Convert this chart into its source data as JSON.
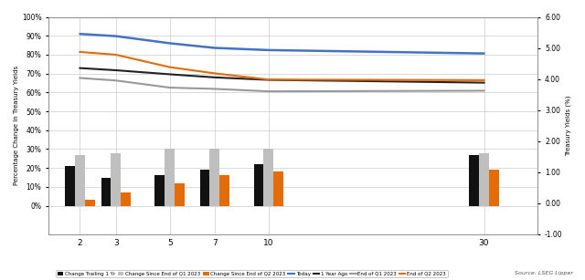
{
  "maturities": [
    2,
    3,
    5,
    7,
    10,
    30
  ],
  "today_yields": [
    5.45,
    5.38,
    5.15,
    5.0,
    4.93,
    4.82
  ],
  "one_year_ago_yields": [
    4.35,
    4.28,
    4.15,
    4.05,
    3.97,
    3.88
  ],
  "end_q1_2023_yields": [
    4.03,
    3.95,
    3.72,
    3.68,
    3.6,
    3.62
  ],
  "end_q2_2023_yields": [
    4.87,
    4.78,
    4.38,
    4.18,
    3.98,
    3.96
  ],
  "change_trailing_1yr": [
    21,
    15,
    16,
    19,
    22,
    27
  ],
  "change_since_q1_2023": [
    27,
    28,
    30,
    30,
    30,
    28
  ],
  "change_since_q2_2023": [
    3,
    7,
    12,
    16,
    18,
    19
  ],
  "left_ylim": [
    -15,
    100
  ],
  "right_ylim": [
    -1.0,
    6.0
  ],
  "left_yticks": [
    0,
    10,
    20,
    30,
    40,
    50,
    60,
    70,
    80,
    90,
    100
  ],
  "right_yticks": [
    -1.0,
    0.0,
    1.0,
    2.0,
    3.0,
    4.0,
    5.0,
    6.0
  ],
  "ylabel_left": "Percentage Change in Treasury Yields",
  "ylabel_right": "Treasury Yields (%)",
  "color_today": "#4472C4",
  "color_1yr_ago": "#222222",
  "color_end_q1": "#999999",
  "color_end_q2": "#E36C09",
  "color_bar_trailing": "#111111",
  "color_bar_q1": "#BFBFBF",
  "color_bar_q2": "#E36C09",
  "source_text": "Source: LSEG Lipper",
  "background_color": "#FFFFFF",
  "grid_color": "#CCCCCC"
}
